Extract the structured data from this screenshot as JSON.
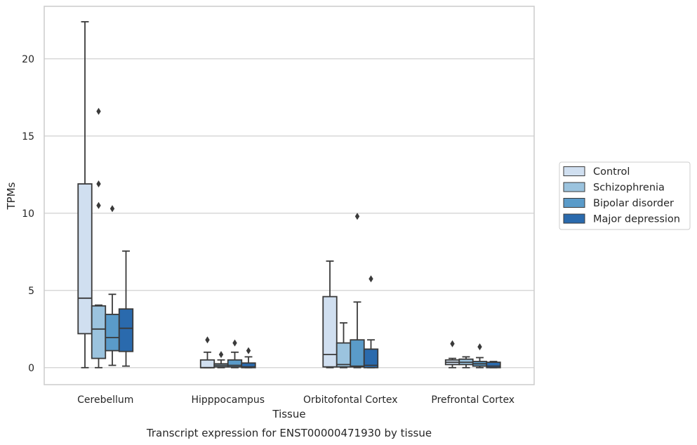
{
  "chart_data": {
    "type": "box",
    "title": "Transcript expression for ENST00000471930 by tissue",
    "xlabel": "Tissue",
    "ylabel": "TPMs",
    "ylim": [
      -1.1,
      23.4
    ],
    "yticks": [
      0,
      5,
      10,
      15,
      20
    ],
    "grid": "horizontal",
    "legend_position": "right",
    "categories": [
      "Cerebellum",
      "Hipppocampus",
      "Orbitofontal Cortex",
      "Prefrontal Cortex"
    ],
    "series": [
      {
        "name": "Control",
        "color": "#d0dff0",
        "boxes": [
          {
            "whislo": 0,
            "q1": 2.2,
            "med": 4.5,
            "q3": 11.9,
            "whishi": 22.4,
            "fliers": []
          },
          {
            "whislo": 0,
            "q1": 0,
            "med": 0,
            "q3": 0.5,
            "whishi": 1.0,
            "fliers": [
              1.8
            ]
          },
          {
            "whislo": 0,
            "q1": 0.05,
            "med": 0.85,
            "q3": 4.6,
            "whishi": 6.9,
            "fliers": []
          },
          {
            "whislo": 0,
            "q1": 0.2,
            "med": 0.35,
            "q3": 0.5,
            "whishi": 0.6,
            "fliers": [
              1.55
            ]
          }
        ]
      },
      {
        "name": "Schizophrenia",
        "color": "#9bc3de",
        "boxes": [
          {
            "whislo": 0,
            "q1": 0.6,
            "med": 2.5,
            "q3": 4.0,
            "whishi": 4.05,
            "fliers": [
              10.5,
              11.9,
              16.6
            ]
          },
          {
            "whislo": 0,
            "q1": 0.05,
            "med": 0.15,
            "q3": 0.25,
            "whishi": 0.5,
            "fliers": [
              0.85
            ]
          },
          {
            "whislo": 0,
            "q1": 0.05,
            "med": 0.2,
            "q3": 1.6,
            "whishi": 2.9,
            "fliers": []
          },
          {
            "whislo": 0,
            "q1": 0.2,
            "med": 0.35,
            "q3": 0.55,
            "whishi": 0.7,
            "fliers": []
          }
        ]
      },
      {
        "name": "Bipolar disorder",
        "color": "#5a9bc9",
        "boxes": [
          {
            "whislo": 0.15,
            "q1": 1.1,
            "med": 1.95,
            "q3": 3.45,
            "whishi": 4.75,
            "fliers": [
              10.3
            ]
          },
          {
            "whislo": 0,
            "q1": 0.05,
            "med": 0.15,
            "q3": 0.5,
            "whishi": 1.0,
            "fliers": [
              1.6
            ]
          },
          {
            "whislo": 0,
            "q1": 0.05,
            "med": 0.1,
            "q3": 1.8,
            "whishi": 4.25,
            "fliers": [
              9.8
            ]
          },
          {
            "whislo": 0,
            "q1": 0.1,
            "med": 0.25,
            "q3": 0.4,
            "whishi": 0.65,
            "fliers": [
              1.35
            ]
          }
        ]
      },
      {
        "name": "Major depression",
        "color": "#2a6aad",
        "boxes": [
          {
            "whislo": 0.1,
            "q1": 1.05,
            "med": 2.55,
            "q3": 3.8,
            "whishi": 7.55,
            "fliers": []
          },
          {
            "whislo": 0,
            "q1": 0,
            "med": 0.05,
            "q3": 0.3,
            "whishi": 0.7,
            "fliers": [
              1.1
            ]
          },
          {
            "whislo": 0,
            "q1": 0,
            "med": 0.15,
            "q3": 1.2,
            "whishi": 1.8,
            "fliers": [
              5.75
            ]
          },
          {
            "whislo": 0,
            "q1": 0,
            "med": 0.1,
            "q3": 0.35,
            "whishi": 0.4,
            "fliers": []
          }
        ]
      }
    ]
  }
}
